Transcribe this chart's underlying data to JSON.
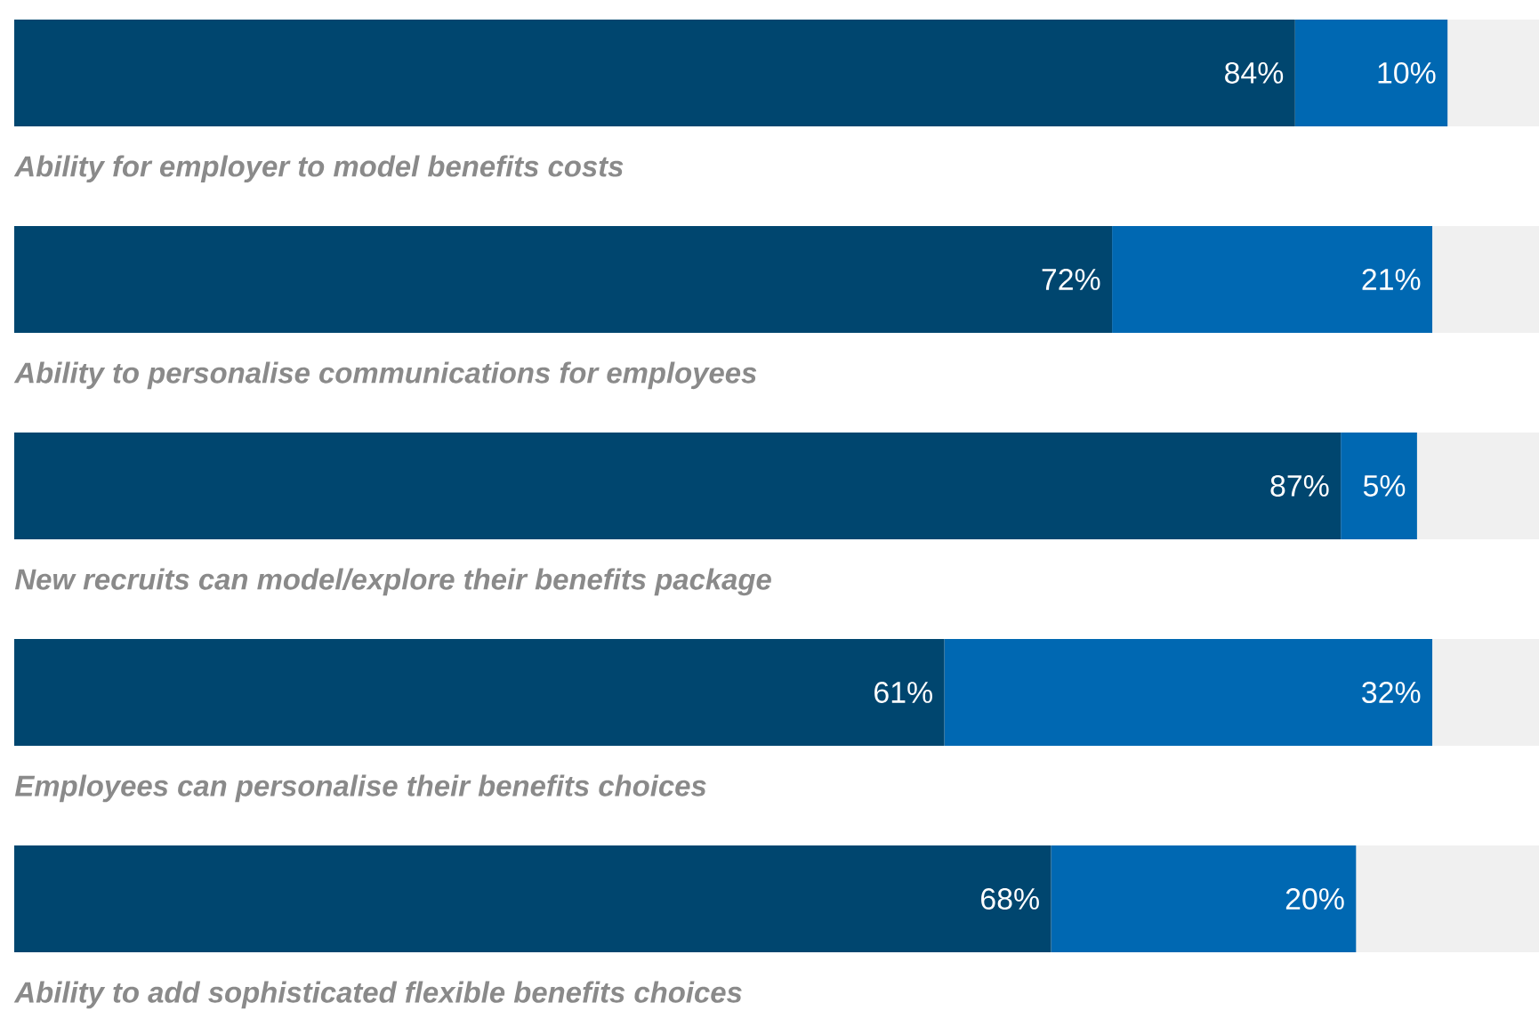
{
  "chart_data": {
    "type": "bar",
    "orientation": "horizontal",
    "stacked": true,
    "xlim": [
      0,
      100
    ],
    "categories": [
      "Ability for employer to model benefits costs",
      "Ability to personalise communications for employees",
      "New recruits can model/explore their benefits package",
      "Employees can personalise their benefits choices",
      "Ability to add sophisticated flexible benefits choices"
    ],
    "series": [
      {
        "color": "#00466f",
        "values": [
          84,
          72,
          87,
          61,
          68
        ],
        "value_labels": [
          "84%",
          "72%",
          "87%",
          "61%",
          "68%"
        ]
      },
      {
        "color": "#0068b2",
        "values": [
          10,
          21,
          5,
          32,
          20
        ],
        "value_labels": [
          "10%",
          "21%",
          "5%",
          "32%",
          "20%"
        ]
      },
      {
        "color": "#f0f0f0",
        "values": [
          6,
          7,
          8,
          7,
          12
        ]
      }
    ]
  }
}
